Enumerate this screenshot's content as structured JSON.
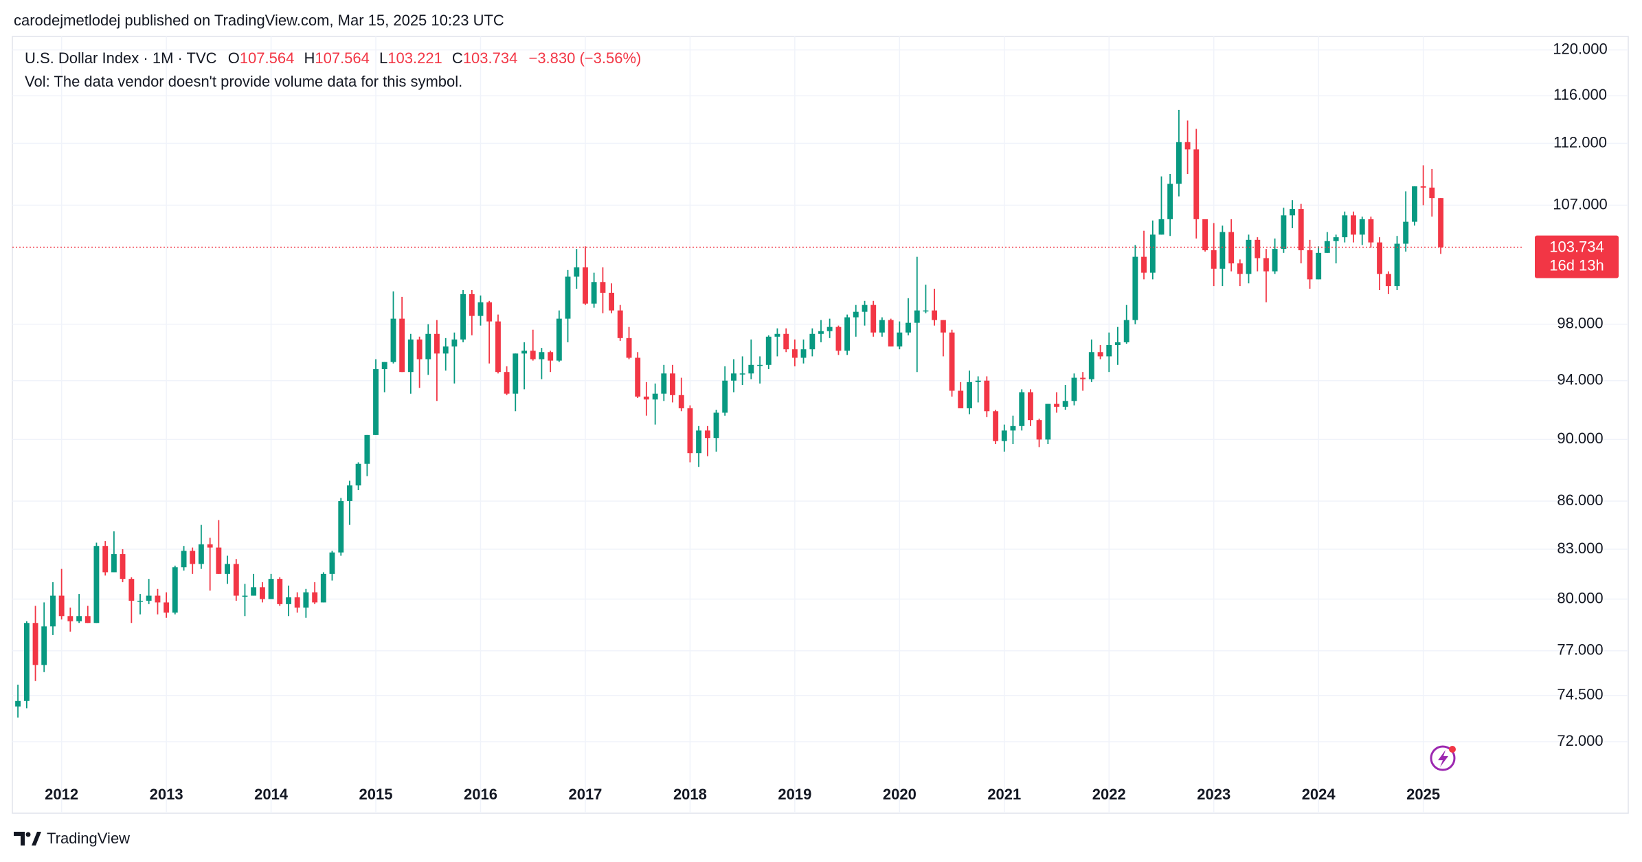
{
  "published": "carodejmetlodej published on TradingView.com, Mar 15, 2025 10:23 UTC",
  "footer": "TradingView",
  "chart_data": {
    "type": "candlestick",
    "symbol": "U.S. Dollar Index · 1M · TVC",
    "ohlc_labels": [
      "O",
      "H",
      "L",
      "C"
    ],
    "ohlc_values": [
      107.564,
      107.564,
      103.221,
      103.734
    ],
    "change": "−3.830 (−3.56%)",
    "volume_note": "Vol: The data vendor doesn't provide volume data for this symbol.",
    "up_color": "#089981",
    "down_color": "#f23645",
    "log_scale": true,
    "grid": true,
    "last_price": 103.734,
    "countdown": "16d 13h",
    "xlim": [
      2011.53,
      2025.96
    ],
    "xticks": [
      2012,
      2013,
      2014,
      2015,
      2016,
      2017,
      2018,
      2019,
      2020,
      2021,
      2022,
      2023,
      2024,
      2025
    ],
    "ylim": [
      68.3,
      121.2
    ],
    "yticks": [
      {
        "value": 72,
        "label": "72.000"
      },
      {
        "value": 74.5,
        "label": "74.500"
      },
      {
        "value": 77,
        "label": "77.000"
      },
      {
        "value": 80,
        "label": "80.000"
      },
      {
        "value": 83,
        "label": "83.000"
      },
      {
        "value": 86,
        "label": "86.000"
      },
      {
        "value": 90,
        "label": "90.000"
      },
      {
        "value": 94,
        "label": "94.000"
      },
      {
        "value": 98,
        "label": "98.000"
      },
      {
        "value": 107,
        "label": "107.000"
      },
      {
        "value": 112,
        "label": "112.000"
      },
      {
        "value": 116,
        "label": "116.000"
      },
      {
        "value": 120,
        "label": "120.000"
      }
    ],
    "x": [
      2011.583,
      2011.667,
      2011.75,
      2011.833,
      2011.917,
      2012,
      2012.083,
      2012.167,
      2012.25,
      2012.333,
      2012.417,
      2012.5,
      2012.583,
      2012.667,
      2012.75,
      2012.833,
      2012.917,
      2013,
      2013.083,
      2013.167,
      2013.25,
      2013.333,
      2013.417,
      2013.5,
      2013.583,
      2013.667,
      2013.75,
      2013.833,
      2013.917,
      2014,
      2014.083,
      2014.167,
      2014.25,
      2014.333,
      2014.417,
      2014.5,
      2014.583,
      2014.667,
      2014.75,
      2014.833,
      2014.917,
      2015,
      2015.083,
      2015.167,
      2015.25,
      2015.333,
      2015.417,
      2015.5,
      2015.583,
      2015.667,
      2015.75,
      2015.833,
      2015.917,
      2016,
      2016.083,
      2016.167,
      2016.25,
      2016.333,
      2016.417,
      2016.5,
      2016.583,
      2016.667,
      2016.75,
      2016.833,
      2016.917,
      2017,
      2017.083,
      2017.167,
      2017.25,
      2017.333,
      2017.417,
      2017.5,
      2017.583,
      2017.667,
      2017.75,
      2017.833,
      2017.917,
      2018,
      2018.083,
      2018.167,
      2018.25,
      2018.333,
      2018.417,
      2018.5,
      2018.583,
      2018.667,
      2018.75,
      2018.833,
      2018.917,
      2019,
      2019.083,
      2019.167,
      2019.25,
      2019.333,
      2019.417,
      2019.5,
      2019.583,
      2019.667,
      2019.75,
      2019.833,
      2019.917,
      2020,
      2020.083,
      2020.167,
      2020.25,
      2020.333,
      2020.417,
      2020.5,
      2020.583,
      2020.667,
      2020.75,
      2020.833,
      2020.917,
      2021,
      2021.083,
      2021.167,
      2021.25,
      2021.333,
      2021.417,
      2021.5,
      2021.583,
      2021.667,
      2021.75,
      2021.833,
      2021.917,
      2022,
      2022.083,
      2022.167,
      2022.25,
      2022.333,
      2022.417,
      2022.5,
      2022.583,
      2022.667,
      2022.75,
      2022.833,
      2022.917,
      2023,
      2023.083,
      2023.167,
      2023.25,
      2023.333,
      2023.417,
      2023.5,
      2023.583,
      2023.667,
      2023.75,
      2023.833,
      2023.917,
      2024,
      2024.083,
      2024.167,
      2024.25,
      2024.333,
      2024.417,
      2024.5,
      2024.583,
      2024.667,
      2024.75,
      2024.833,
      2024.917,
      2025,
      2025.083,
      2025.167
    ],
    "open": [
      73.9,
      74.2,
      78.6,
      76.2,
      78.4,
      80.2,
      79.0,
      78.7,
      79.0,
      78.6,
      83.2,
      81.6,
      82.7,
      81.2,
      79.9,
      79.9,
      80.2,
      79.8,
      79.2,
      81.9,
      82.9,
      82.1,
      83.3,
      83.1,
      81.5,
      82.1,
      80.2,
      80.2,
      80.7,
      80.0,
      81.2,
      79.7,
      80.1,
      79.5,
      80.4,
      79.8,
      81.5,
      82.8,
      86.0,
      87.0,
      88.4,
      90.3,
      94.8,
      95.3,
      98.4,
      94.6,
      96.9,
      95.5,
      97.3,
      95.9,
      96.4,
      96.9,
      100.2,
      98.6,
      99.6,
      98.2,
      94.6,
      93.1,
      95.9,
      96.1,
      95.5,
      96.0,
      95.4,
      98.4,
      101.5,
      102.2,
      99.5,
      101.1,
      100.3,
      99.0,
      97.0,
      95.6,
      92.9,
      92.7,
      93.1,
      94.5,
      93.0,
      92.1,
      89.1,
      90.6,
      90.1,
      91.8,
      94.0,
      94.5,
      94.5,
      95.1,
      95.1,
      97.1,
      97.3,
      96.2,
      95.6,
      96.2,
      97.3,
      97.5,
      97.8,
      96.1,
      98.5,
      98.9,
      99.4,
      97.4,
      98.3,
      96.4,
      97.4,
      98.1,
      99.0,
      99.0,
      98.3,
      97.4,
      93.3,
      92.1,
      93.9,
      94.0,
      91.9,
      89.9,
      90.6,
      90.9,
      93.2,
      91.3,
      90.0,
      92.4,
      92.2,
      92.6,
      94.2,
      94.1,
      96.0,
      95.7,
      96.5,
      96.7,
      98.3,
      103.0,
      101.8,
      104.7,
      105.9,
      108.7,
      112.1,
      111.5,
      105.9,
      103.5,
      102.1,
      104.9,
      102.5,
      101.7,
      104.3,
      102.9,
      101.9,
      103.6,
      106.2,
      106.7,
      103.5,
      101.3,
      103.3,
      104.2,
      104.5,
      106.2,
      104.7,
      105.9,
      104.1,
      101.7,
      100.8,
      104.0,
      105.7,
      108.5,
      108.4,
      107.564
    ],
    "high": [
      75.1,
      78.7,
      79.6,
      79.8,
      81.0,
      81.8,
      79.5,
      80.3,
      79.6,
      83.4,
      83.5,
      84.1,
      83.0,
      81.3,
      80.3,
      81.2,
      80.6,
      80.4,
      82.0,
      83.2,
      83.1,
      84.5,
      83.7,
      84.8,
      82.6,
      82.4,
      80.9,
      81.5,
      81.0,
      81.5,
      81.3,
      80.8,
      80.4,
      80.6,
      81.0,
      81.6,
      82.9,
      86.2,
      87.3,
      88.5,
      90.3,
      95.5,
      95.3,
      100.4,
      100.0,
      97.3,
      97.1,
      98.0,
      98.3,
      97.0,
      97.4,
      100.5,
      100.5,
      100.1,
      99.7,
      98.7,
      95.0,
      95.9,
      96.7,
      97.6,
      96.3,
      96.1,
      99.0,
      102.0,
      103.6,
      103.8,
      101.8,
      102.2,
      101.0,
      99.4,
      97.8,
      96.0,
      93.9,
      93.8,
      95.1,
      95.1,
      94.2,
      92.3,
      90.9,
      90.9,
      92.0,
      95.0,
      95.5,
      95.7,
      96.9,
      95.7,
      97.2,
      97.7,
      97.7,
      96.9,
      96.9,
      97.7,
      98.3,
      98.4,
      97.9,
      98.7,
      99.4,
      99.7,
      99.7,
      98.5,
      98.4,
      98.2,
      99.9,
      103.0,
      100.9,
      100.6,
      98.3,
      97.6,
      93.9,
      94.7,
      94.3,
      94.3,
      92.0,
      91.0,
      91.6,
      93.4,
      93.4,
      91.4,
      92.4,
      93.2,
      93.7,
      94.5,
      94.6,
      96.9,
      96.5,
      97.4,
      97.8,
      99.4,
      103.9,
      105.0,
      105.8,
      109.3,
      109.5,
      114.8,
      113.9,
      113.2,
      105.8,
      105.6,
      105.4,
      105.9,
      102.8,
      104.7,
      104.5,
      103.6,
      104.4,
      106.8,
      107.4,
      107.1,
      104.3,
      103.8,
      104.9,
      104.7,
      106.5,
      106.5,
      106.1,
      106.1,
      104.5,
      101.9,
      104.6,
      108.1,
      108.5,
      110.2,
      109.9,
      107.564
    ],
    "low": [
      73.3,
      73.8,
      75.3,
      75.8,
      77.9,
      78.8,
      78.1,
      78.6,
      78.6,
      78.6,
      81.4,
      81.6,
      81.0,
      78.6,
      79.1,
      79.7,
      79.1,
      78.9,
      79.1,
      81.7,
      81.5,
      81.8,
      80.5,
      81.5,
      80.9,
      79.9,
      79.0,
      80.2,
      79.8,
      80.1,
      79.6,
      79.0,
      79.2,
      78.9,
      79.7,
      79.8,
      81.1,
      82.6,
      84.5,
      86.7,
      87.6,
      90.3,
      93.2,
      95.2,
      94.6,
      93.1,
      93.5,
      94.4,
      92.6,
      94.7,
      93.8,
      96.7,
      97.2,
      97.9,
      95.2,
      94.5,
      93.0,
      91.9,
      93.4,
      95.4,
      94.1,
      94.6,
      95.3,
      96.7,
      100.6,
      99.4,
      99.2,
      98.8,
      98.8,
      96.8,
      95.5,
      92.8,
      91.6,
      91.0,
      92.6,
      92.5,
      91.9,
      88.5,
      88.2,
      88.9,
      89.2,
      91.6,
      93.2,
      93.7,
      94.1,
      93.8,
      94.8,
      95.7,
      96.0,
      95.0,
      95.2,
      95.7,
      96.7,
      97.0,
      95.8,
      95.8,
      97.1,
      97.9,
      97.1,
      97.1,
      96.4,
      96.2,
      97.2,
      94.6,
      98.8,
      97.9,
      95.7,
      92.9,
      92.1,
      91.7,
      92.5,
      91.5,
      89.7,
      89.2,
      89.7,
      90.6,
      90.9,
      89.5,
      89.7,
      91.8,
      92.0,
      92.3,
      93.3,
      93.9,
      95.5,
      94.6,
      95.1,
      96.6,
      98.0,
      101.3,
      101.3,
      104.7,
      104.6,
      107.7,
      109.5,
      104.4,
      103.4,
      100.8,
      100.8,
      101.9,
      100.8,
      101.0,
      101.9,
      99.6,
      101.7,
      103.3,
      105.2,
      102.5,
      100.6,
      101.3,
      103.3,
      102.5,
      104.1,
      104.1,
      103.9,
      103.7,
      100.5,
      100.2,
      100.5,
      103.4,
      105.4,
      107.0,
      106.1,
      103.221
    ],
    "close": [
      74.2,
      78.6,
      76.2,
      78.4,
      80.2,
      79.0,
      78.7,
      79.0,
      78.6,
      83.2,
      81.6,
      82.7,
      81.2,
      79.9,
      79.9,
      80.2,
      79.8,
      79.2,
      81.9,
      82.9,
      82.1,
      83.3,
      83.1,
      81.5,
      82.1,
      80.2,
      80.2,
      80.7,
      80.0,
      81.2,
      79.7,
      80.1,
      79.5,
      80.4,
      79.8,
      81.5,
      82.8,
      86.0,
      87.0,
      88.4,
      90.3,
      94.8,
      95.3,
      98.4,
      94.6,
      96.9,
      95.5,
      97.3,
      95.9,
      96.4,
      96.9,
      100.2,
      98.6,
      99.6,
      98.2,
      94.6,
      93.1,
      95.9,
      96.1,
      95.5,
      96.0,
      95.4,
      98.4,
      101.5,
      102.2,
      99.5,
      101.1,
      100.3,
      99.0,
      97.0,
      95.6,
      92.9,
      92.7,
      93.1,
      94.5,
      93.0,
      92.1,
      89.1,
      90.6,
      90.1,
      91.8,
      94.0,
      94.5,
      94.5,
      95.1,
      95.1,
      97.1,
      97.3,
      96.2,
      95.6,
      96.2,
      97.3,
      97.5,
      97.8,
      96.1,
      98.5,
      98.9,
      99.4,
      97.4,
      98.3,
      96.4,
      97.4,
      98.1,
      99.0,
      99.0,
      98.3,
      97.4,
      93.3,
      92.1,
      93.9,
      94.0,
      91.9,
      89.9,
      90.6,
      90.9,
      93.2,
      91.3,
      90.0,
      92.4,
      92.2,
      92.6,
      94.2,
      94.1,
      96.0,
      95.7,
      96.5,
      96.7,
      98.3,
      103.0,
      101.8,
      104.7,
      105.9,
      108.7,
      112.1,
      111.5,
      105.9,
      103.5,
      102.1,
      104.9,
      102.5,
      101.7,
      104.3,
      102.9,
      101.9,
      103.6,
      106.2,
      106.7,
      103.5,
      101.3,
      103.3,
      104.2,
      104.5,
      106.2,
      104.7,
      105.9,
      104.1,
      101.7,
      100.8,
      104.0,
      105.7,
      108.5,
      108.4,
      107.564,
      103.734
    ]
  }
}
